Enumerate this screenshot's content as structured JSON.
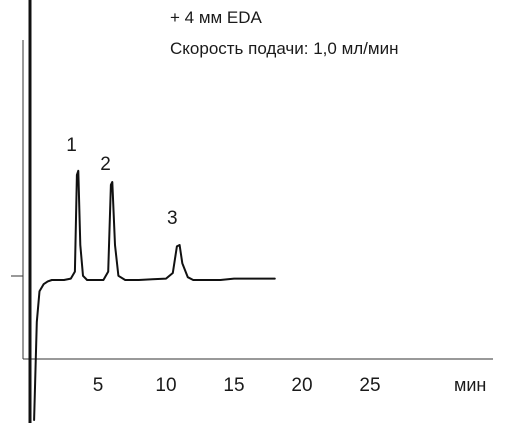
{
  "chart_data": {
    "type": "line",
    "x_unit": "мин",
    "x_ticks": [
      5,
      10,
      15,
      20,
      25
    ],
    "xlim": [
      0,
      28
    ],
    "grid": false,
    "annotation_lines": [
      "+ 4 мм EDA",
      "Скорость подачи: 1,0 мл/мин"
    ],
    "peaks": [
      {
        "label": "1",
        "x": 3.5
      },
      {
        "label": "2",
        "x": 6.0
      },
      {
        "label": "3",
        "x": 10.9
      }
    ],
    "series": [
      {
        "x": [
          0.3,
          0.5,
          0.7,
          1.0,
          1.3,
          1.6,
          2.0,
          2.5,
          3.0,
          3.3,
          3.45,
          3.55,
          3.7,
          3.9,
          4.2,
          4.6,
          5.0,
          5.4,
          5.75,
          5.95,
          6.05,
          6.25,
          6.5,
          7.0,
          8.0,
          9.0,
          10.0,
          10.5,
          10.8,
          11.0,
          11.2,
          11.6,
          12.0,
          13.0,
          14.0,
          15.0,
          16.0,
          17.0,
          18.0
        ],
        "y": [
          -1.0,
          -0.3,
          -0.08,
          -0.03,
          -0.01,
          0.0,
          0.0,
          0.0,
          0.01,
          0.06,
          0.75,
          0.78,
          0.25,
          0.03,
          0.0,
          0.0,
          0.0,
          0.0,
          0.06,
          0.68,
          0.7,
          0.25,
          0.03,
          0.0,
          0.0,
          0.005,
          0.01,
          0.05,
          0.24,
          0.25,
          0.12,
          0.02,
          0.0,
          0.0,
          0.0,
          0.01,
          0.01,
          0.01,
          0.01
        ]
      }
    ]
  }
}
